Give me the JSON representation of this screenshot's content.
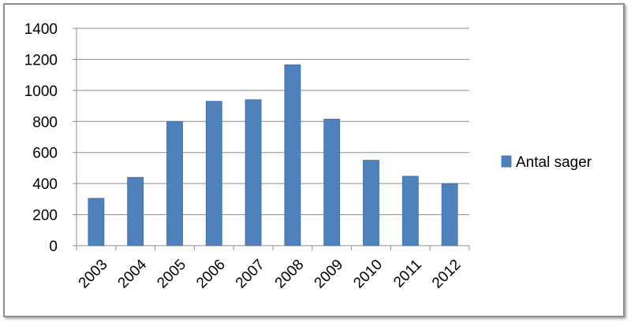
{
  "chart_data": {
    "type": "bar",
    "categories": [
      "2003",
      "2004",
      "2005",
      "2006",
      "2007",
      "2008",
      "2009",
      "2010",
      "2011",
      "2012"
    ],
    "series": [
      {
        "name": "Antal sager",
        "color": "#4f81bd",
        "values": [
          305,
          440,
          800,
          930,
          940,
          1165,
          815,
          550,
          447,
          400
        ]
      }
    ],
    "ylim": [
      0,
      1400
    ],
    "yticks": [
      "0",
      "200",
      "400",
      "600",
      "800",
      "1000",
      "1200",
      "1400"
    ],
    "grid": true,
    "legend_position": "right"
  }
}
